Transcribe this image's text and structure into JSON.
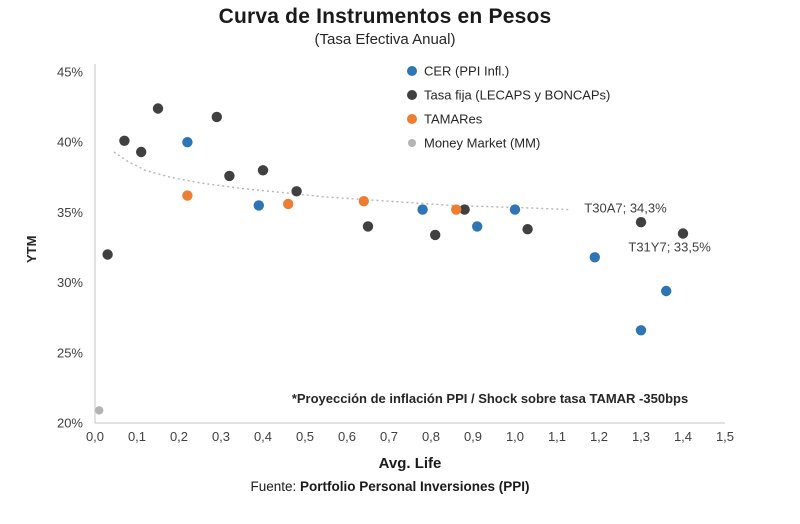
{
  "note": "*Proyección de inflación PPI / Shock sobre tasa TAMAR -350bps",
  "source": {
    "prefix": "Fuente: ",
    "bold": "Portfolio Personal Inversiones (PPI)"
  },
  "chart_data": {
    "type": "scatter",
    "title": "Curva de Instrumentos en Pesos",
    "subtitle": "(Tasa Efectiva Anual)",
    "xlabel": "Avg. Life",
    "ylabel": "YTM",
    "xlim": [
      0,
      1.5
    ],
    "ylim": [
      20,
      45
    ],
    "grid": false,
    "legend_position": "top-center",
    "x_tick_values": [
      0,
      0.1,
      0.2,
      0.3,
      0.4,
      0.5,
      0.6,
      0.7,
      0.8,
      0.9,
      1.0,
      1.1,
      1.2,
      1.3,
      1.4,
      1.5
    ],
    "x_ticks": [
      "0,0",
      "0,1",
      "0,2",
      "0,3",
      "0,4",
      "0,5",
      "0,6",
      "0,7",
      "0,8",
      "0,9",
      "1,0",
      "1,1",
      "1,2",
      "1,3",
      "1,4",
      "1,5"
    ],
    "y_tick_values": [
      20,
      25,
      30,
      35,
      40,
      45
    ],
    "y_ticks": [
      "20%",
      "25%",
      "30%",
      "35%",
      "40%",
      "45%"
    ],
    "colors": {
      "axis": "#c4c4c4",
      "trendline": "#b5b5b5"
    },
    "series": [
      {
        "id": "cer",
        "name": "CER (PPI Infl.)",
        "color": "#2E75B6",
        "marker_size": 5.2,
        "points": [
          [
            0.22,
            40.0
          ],
          [
            0.39,
            35.5
          ],
          [
            0.78,
            35.2
          ],
          [
            0.91,
            34.0
          ],
          [
            1.0,
            35.2
          ],
          [
            1.19,
            31.8
          ],
          [
            1.3,
            26.6
          ],
          [
            1.36,
            29.4
          ]
        ]
      },
      {
        "id": "tasa-fija",
        "name": "Tasa fija (LECAPS y BONCAPs)",
        "color": "#404040",
        "marker_size": 5.2,
        "points": [
          [
            0.03,
            32.0
          ],
          [
            0.07,
            40.1
          ],
          [
            0.11,
            39.3
          ],
          [
            0.15,
            42.4
          ],
          [
            0.29,
            41.8
          ],
          [
            0.32,
            37.6
          ],
          [
            0.4,
            38.0
          ],
          [
            0.48,
            36.5
          ],
          [
            0.65,
            34.0
          ],
          [
            0.81,
            33.4
          ],
          [
            0.88,
            35.2
          ],
          [
            1.03,
            33.8
          ],
          [
            1.3,
            34.3
          ],
          [
            1.4,
            33.5
          ]
        ]
      },
      {
        "id": "tamares",
        "name": "TAMARes",
        "color": "#ED7D31",
        "marker_size": 5.2,
        "points": [
          [
            0.22,
            36.2
          ],
          [
            0.46,
            35.6
          ],
          [
            0.64,
            35.8
          ],
          [
            0.86,
            35.2
          ]
        ]
      },
      {
        "id": "money-market",
        "name": "Money Market (MM)",
        "color": "#B3B3B3",
        "marker_size": 4.2,
        "points": [
          [
            0.01,
            20.9
          ]
        ]
      }
    ],
    "trendline": {
      "style": "dotted",
      "points": [
        [
          0.045,
          39.3
        ],
        [
          0.08,
          38.6
        ],
        [
          0.12,
          38.0
        ],
        [
          0.18,
          37.5
        ],
        [
          0.25,
          37.1
        ],
        [
          0.35,
          36.7
        ],
        [
          0.45,
          36.4
        ],
        [
          0.55,
          36.1
        ],
        [
          0.65,
          35.9
        ],
        [
          0.75,
          35.7
        ],
        [
          0.85,
          35.5
        ],
        [
          0.95,
          35.4
        ],
        [
          1.05,
          35.3
        ],
        [
          1.13,
          35.2
        ]
      ]
    },
    "annotations": [
      {
        "text": "T30A7; 34,3%",
        "x": 1.165,
        "y": 35.3
      },
      {
        "text": "T31Y7; 33,5%",
        "x": 1.27,
        "y": 32.55
      }
    ]
  }
}
